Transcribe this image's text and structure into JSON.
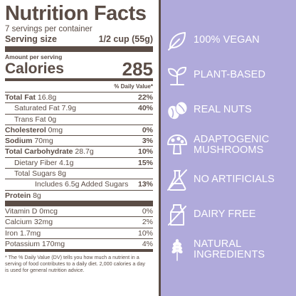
{
  "facts": {
    "title": "Nutrition Facts",
    "servings_per_container": "7 servings per container",
    "serving_size_label": "Serving size",
    "serving_size_value": "1/2 cup (55g)",
    "amount_per_serving": "Amount per serving",
    "calories_label": "Calories",
    "calories_value": "285",
    "dv_header": "% Daily Value*",
    "nutrients": [
      {
        "bold": "Total Fat",
        "amount": " 16.8g",
        "dv": "22%"
      },
      {
        "bold": "",
        "amount": "Saturated Fat 7.9g",
        "dv": "40%"
      },
      {
        "bold": "",
        "amount": "Trans Fat 0g",
        "dv": ""
      },
      {
        "bold": "Cholesterol",
        "amount": " 0mg",
        "dv": "0%"
      },
      {
        "bold": "Sodium",
        "amount": " 70mg",
        "dv": "3%"
      },
      {
        "bold": "Total Carbohydrate",
        "amount": " 28.7g",
        "dv": "10%"
      },
      {
        "bold": "",
        "amount": "Dietary Fiber 4.1g",
        "dv": "15%"
      },
      {
        "bold": "",
        "amount": "Total Sugars 8g",
        "dv": ""
      },
      {
        "bold": "",
        "amount": "Includes 6.5g Added Sugars",
        "dv": "13%"
      },
      {
        "bold": "Protein",
        "amount": " 8g",
        "dv": ""
      }
    ],
    "micronutrients": [
      {
        "name": "Vitamin D 0mcg",
        "dv": "0%"
      },
      {
        "name": "Calcium 32mg",
        "dv": "2%"
      },
      {
        "name": "Iron 1.7mg",
        "dv": "10%"
      },
      {
        "name": "Potassium 170mg",
        "dv": "4%"
      }
    ],
    "footnote": "* The % Daily Value (DV) tells you how much a nutrient in a serving of food contributes to a daily diet. 2,000 calories a day is used for general nutrition advice."
  },
  "claims": [
    {
      "label": "100% VEGAN",
      "icon": "leaf-icon"
    },
    {
      "label": "PLANT-BASED",
      "icon": "sprout-icon"
    },
    {
      "label": "REAL NUTS",
      "icon": "nuts-icon"
    },
    {
      "label_line1": "ADAPTOGENIC",
      "label_line2": "MUSHROOMS",
      "icon": "mushroom-icon"
    },
    {
      "label": "NO ARTIFICIALS",
      "icon": "no-artificials-flask-icon"
    },
    {
      "label": "DAIRY FREE",
      "icon": "no-dairy-carton-icon"
    },
    {
      "label_line1": "NATURAL",
      "label_line2": "INGREDIENTS",
      "icon": "lavender-icon"
    }
  ],
  "colors": {
    "background": "#b0aadb",
    "ink": "#5b4d46",
    "panel": "#ffffff",
    "claim_text": "#ffffff"
  }
}
